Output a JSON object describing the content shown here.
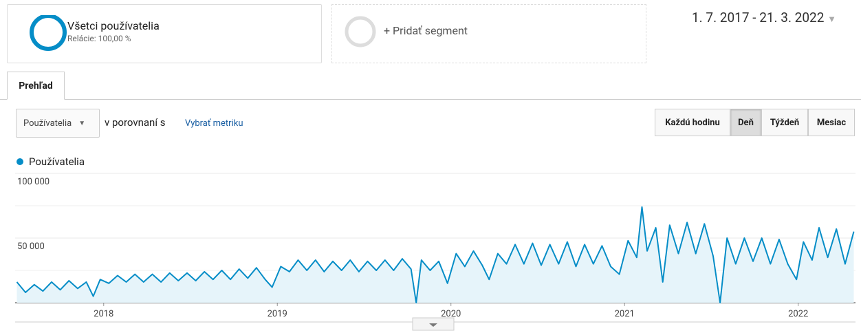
{
  "segments": [
    {
      "title": "Všetci používatelia",
      "subtitle": "Relácie: 100,00 %"
    },
    {
      "title": "+ Pridať segment"
    }
  ],
  "date_range": "1. 7. 2017 - 21. 3. 2022",
  "tabs": [
    "Prehľad"
  ],
  "metric_select": "Používatelia",
  "compare_text": "v porovnaní s",
  "select_metric_link": "Vybrať metriku",
  "granularity": [
    {
      "label": "Každú hodinu",
      "active": false
    },
    {
      "label": "Deň",
      "active": true
    },
    {
      "label": "Týždeň",
      "active": false
    },
    {
      "label": "Mesiac",
      "active": false
    }
  ],
  "chart_data": {
    "type": "line",
    "x": [
      2017.5,
      2017.55,
      2017.6,
      2017.65,
      2017.7,
      2017.75,
      2017.8,
      2017.85,
      2017.9,
      2017.94,
      2017.98,
      2018.03,
      2018.08,
      2018.13,
      2018.18,
      2018.23,
      2018.28,
      2018.33,
      2018.38,
      2018.43,
      2018.48,
      2018.53,
      2018.58,
      2018.63,
      2018.68,
      2018.73,
      2018.78,
      2018.83,
      2018.88,
      2018.93,
      2018.97,
      2019.02,
      2019.07,
      2019.12,
      2019.17,
      2019.22,
      2019.27,
      2019.32,
      2019.37,
      2019.42,
      2019.47,
      2019.52,
      2019.57,
      2019.62,
      2019.67,
      2019.72,
      2019.77,
      2019.8,
      2019.83,
      2019.88,
      2019.93,
      2019.98,
      2020.03,
      2020.08,
      2020.13,
      2020.18,
      2020.22,
      2020.27,
      2020.32,
      2020.37,
      2020.42,
      2020.47,
      2020.52,
      2020.57,
      2020.62,
      2020.67,
      2020.72,
      2020.77,
      2020.82,
      2020.87,
      2020.92,
      2020.97,
      2021.02,
      2021.07,
      2021.1,
      2021.13,
      2021.18,
      2021.22,
      2021.26,
      2021.31,
      2021.36,
      2021.41,
      2021.46,
      2021.51,
      2021.55,
      2021.59,
      2021.64,
      2021.69,
      2021.74,
      2021.79,
      2021.84,
      2021.89,
      2021.94,
      2021.99,
      2022.03,
      2022.08,
      2022.12,
      2022.17,
      2022.22,
      2022.27,
      2022.32
    ],
    "series": [
      {
        "name": "Používatelia",
        "color": "#058dc7",
        "fill": "#e6f4fa",
        "values": [
          16000,
          8000,
          14000,
          9000,
          16000,
          10000,
          17000,
          11000,
          16000,
          5000,
          18000,
          15000,
          21000,
          16000,
          22000,
          16000,
          22000,
          16000,
          23000,
          17000,
          23000,
          17000,
          24000,
          18000,
          25000,
          18000,
          26000,
          19000,
          27000,
          18000,
          12000,
          28000,
          24000,
          33000,
          25000,
          33000,
          24000,
          32000,
          25000,
          33000,
          24000,
          32000,
          25000,
          33000,
          25000,
          34000,
          26000,
          0,
          33000,
          25000,
          32000,
          15000,
          38000,
          28000,
          40000,
          29000,
          18000,
          38000,
          30000,
          45000,
          30000,
          46000,
          29000,
          45000,
          30000,
          47000,
          28000,
          45000,
          30000,
          44000,
          28000,
          22000,
          48000,
          35000,
          74000,
          40000,
          58000,
          16000,
          60000,
          38000,
          62000,
          38000,
          61000,
          36000,
          0,
          50000,
          30000,
          50000,
          32000,
          50000,
          30000,
          49000,
          30000,
          18000,
          47000,
          33000,
          58000,
          35000,
          57000,
          30000,
          55000
        ]
      }
    ],
    "xlim": [
      2017.49,
      2022.33
    ],
    "xticks": [
      2018,
      2019,
      2020,
      2021,
      2022
    ],
    "ylim": [
      0,
      100000
    ],
    "yticks": [
      {
        "value": 50000,
        "label": "50 000"
      },
      {
        "value": 100000,
        "label": "100 000"
      }
    ],
    "minor_yticks": [
      25000,
      75000
    ],
    "grid": true
  }
}
